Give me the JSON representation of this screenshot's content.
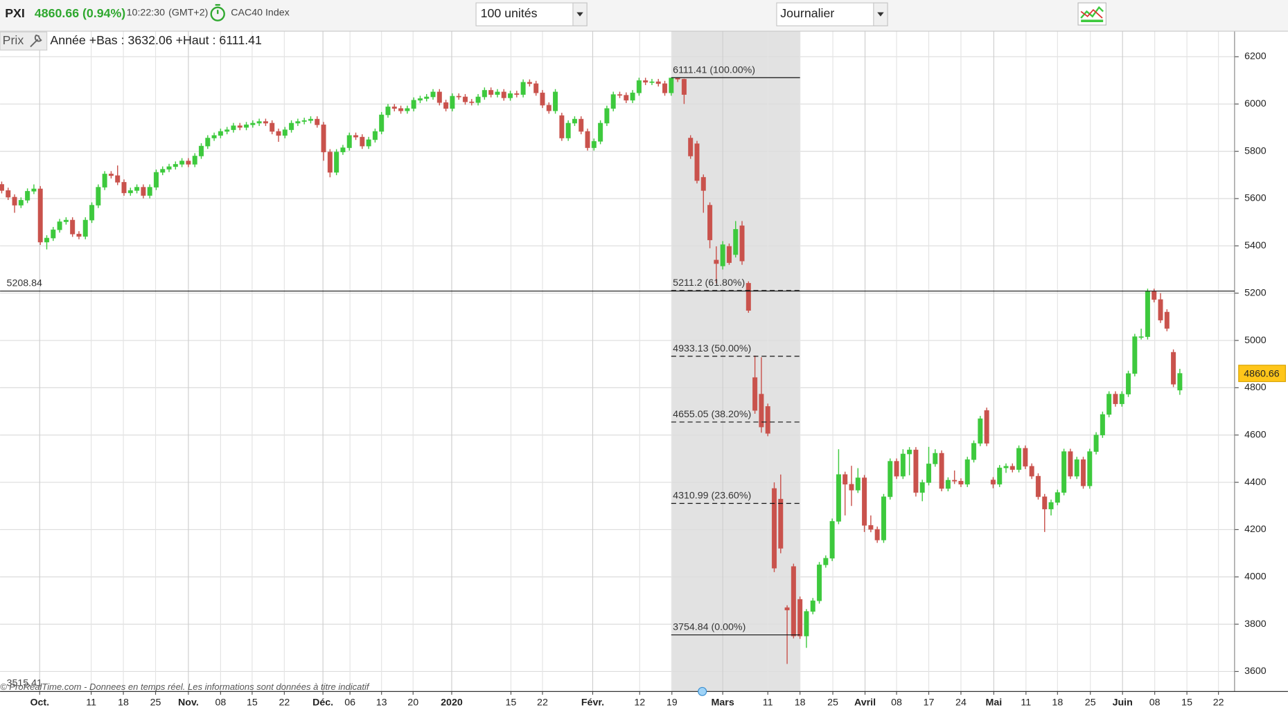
{
  "header": {
    "symbol": "PXI",
    "price_change": "4860.66 (0.94%)",
    "time": "10:22:30",
    "timezone": "(GMT+2)",
    "instrument": "CAC40 Index",
    "quantity": "100 unités",
    "period": "Journalier"
  },
  "footer": "© ProRealTime.com  - Donnees en temps réel. Les informations sont données à titre indicatif",
  "chart_data": {
    "type": "candlestick",
    "panel_label": "Prix",
    "subtitle": "Année +Bas : 3632.06 +Haut : 6111.41",
    "colors": {
      "up": "#3dc93d",
      "down": "#c9524c"
    },
    "x": [
      0,
      1,
      2,
      3,
      4,
      5,
      6,
      7,
      8,
      9,
      10,
      11,
      12,
      13,
      14,
      15,
      16,
      17,
      18,
      19,
      20,
      21,
      22,
      23,
      24,
      25,
      26,
      27,
      28,
      29,
      30,
      31,
      32,
      33,
      34,
      35,
      36,
      37,
      38,
      39,
      40,
      41,
      42,
      43,
      44,
      45,
      46,
      47,
      48,
      49,
      50,
      51,
      52,
      53,
      54,
      55,
      56,
      57,
      58,
      59,
      60,
      61,
      62,
      63,
      64,
      65,
      66,
      67,
      68,
      69,
      70,
      71,
      72,
      73,
      74,
      75,
      76,
      77,
      78,
      79,
      80,
      81,
      82,
      83,
      84,
      85,
      86,
      87,
      88,
      89,
      90,
      91,
      92,
      93,
      94,
      95,
      96,
      97,
      98,
      99,
      100,
      101,
      102,
      103,
      104,
      105,
      106,
      107,
      108,
      109,
      110,
      111,
      112,
      113,
      114,
      115,
      116,
      117,
      118,
      119,
      120,
      121,
      122,
      123,
      124,
      125,
      126,
      127,
      128,
      129,
      130,
      131,
      132,
      133,
      134,
      135,
      136,
      137,
      138,
      139,
      140,
      141,
      142,
      143,
      144,
      145,
      146,
      147,
      148,
      149,
      150,
      151,
      152,
      153,
      154,
      155,
      156,
      157,
      158,
      159,
      160,
      161,
      162,
      163,
      164,
      165,
      166,
      167,
      168,
      169,
      170,
      171,
      172,
      173,
      174,
      175,
      176,
      177,
      178,
      179,
      180,
      181,
      182,
      183
    ],
    "ohlc": [
      [
        5660,
        5672,
        5622,
        5634
      ],
      [
        5634,
        5646,
        5594,
        5606
      ],
      [
        5606,
        5618,
        5540,
        5572
      ],
      [
        5572,
        5605,
        5560,
        5593
      ],
      [
        5593,
        5643,
        5581,
        5631
      ],
      [
        5631,
        5660,
        5619,
        5641
      ],
      [
        5641,
        5653,
        5404,
        5416
      ],
      [
        5416,
        5445,
        5385,
        5433
      ],
      [
        5433,
        5480,
        5421,
        5468
      ],
      [
        5468,
        5514,
        5456,
        5502
      ],
      [
        5502,
        5521,
        5490,
        5509
      ],
      [
        5509,
        5521,
        5438,
        5450
      ],
      [
        5450,
        5462,
        5428,
        5440
      ],
      [
        5440,
        5521,
        5428,
        5509
      ],
      [
        5509,
        5584,
        5497,
        5572
      ],
      [
        5572,
        5660,
        5560,
        5648
      ],
      [
        5648,
        5716,
        5636,
        5704
      ],
      [
        5704,
        5716,
        5685,
        5697
      ],
      [
        5697,
        5740,
        5657,
        5669
      ],
      [
        5669,
        5681,
        5612,
        5624
      ],
      [
        5624,
        5646,
        5612,
        5634
      ],
      [
        5634,
        5660,
        5622,
        5648
      ],
      [
        5648,
        5660,
        5601,
        5613
      ],
      [
        5613,
        5660,
        5601,
        5648
      ],
      [
        5648,
        5723,
        5636,
        5711
      ],
      [
        5711,
        5736,
        5699,
        5724
      ],
      [
        5724,
        5747,
        5712,
        5735
      ],
      [
        5735,
        5757,
        5723,
        5745
      ],
      [
        5745,
        5771,
        5733,
        5759
      ],
      [
        5759,
        5771,
        5733,
        5745
      ],
      [
        5745,
        5792,
        5733,
        5780
      ],
      [
        5780,
        5834,
        5768,
        5822
      ],
      [
        5822,
        5868,
        5810,
        5856
      ],
      [
        5856,
        5879,
        5844,
        5867
      ],
      [
        5867,
        5896,
        5855,
        5884
      ],
      [
        5884,
        5903,
        5872,
        5891
      ],
      [
        5891,
        5920,
        5879,
        5908
      ],
      [
        5908,
        5920,
        5889,
        5901
      ],
      [
        5901,
        5924,
        5889,
        5912
      ],
      [
        5912,
        5931,
        5900,
        5919
      ],
      [
        5919,
        5938,
        5907,
        5926
      ],
      [
        5926,
        5938,
        5907,
        5919
      ],
      [
        5919,
        5931,
        5872,
        5884
      ],
      [
        5884,
        5896,
        5840,
        5867
      ],
      [
        5867,
        5903,
        5855,
        5891
      ],
      [
        5891,
        5931,
        5879,
        5919
      ],
      [
        5919,
        5938,
        5907,
        5926
      ],
      [
        5926,
        5942,
        5914,
        5930
      ],
      [
        5930,
        5948,
        5918,
        5936
      ],
      [
        5936,
        5948,
        5900,
        5912
      ],
      [
        5912,
        5924,
        5760,
        5797
      ],
      [
        5797,
        5809,
        5690,
        5711
      ],
      [
        5711,
        5809,
        5699,
        5797
      ],
      [
        5797,
        5827,
        5785,
        5815
      ],
      [
        5815,
        5879,
        5803,
        5867
      ],
      [
        5867,
        5879,
        5848,
        5860
      ],
      [
        5860,
        5872,
        5810,
        5822
      ],
      [
        5822,
        5861,
        5810,
        5849
      ],
      [
        5849,
        5896,
        5837,
        5884
      ],
      [
        5884,
        5966,
        5872,
        5954
      ],
      [
        5954,
        6000,
        5942,
        5988
      ],
      [
        5988,
        6000,
        5969,
        5981
      ],
      [
        5981,
        5993,
        5959,
        5971
      ],
      [
        5971,
        5993,
        5959,
        5981
      ],
      [
        5981,
        6028,
        5969,
        6016
      ],
      [
        6016,
        6035,
        6004,
        6023
      ],
      [
        6023,
        6042,
        6011,
        6030
      ],
      [
        6030,
        6063,
        6018,
        6051
      ],
      [
        6051,
        6063,
        5994,
        6006
      ],
      [
        6006,
        6018,
        5969,
        5981
      ],
      [
        5981,
        6045,
        5969,
        6033
      ],
      [
        6033,
        6045,
        6018,
        6030
      ],
      [
        6030,
        6042,
        5997,
        6009
      ],
      [
        6009,
        6021,
        5994,
        6006
      ],
      [
        6006,
        6042,
        5994,
        6030
      ],
      [
        6030,
        6070,
        6018,
        6058
      ],
      [
        6058,
        6070,
        6028,
        6040
      ],
      [
        6040,
        6063,
        6028,
        6051
      ],
      [
        6051,
        6063,
        6014,
        6026
      ],
      [
        6026,
        6056,
        6014,
        6044
      ],
      [
        6044,
        6056,
        6028,
        6040
      ],
      [
        6040,
        6104,
        6028,
        6092
      ],
      [
        6092,
        6104,
        6074,
        6086
      ],
      [
        6086,
        6098,
        6035,
        6047
      ],
      [
        6047,
        6059,
        5983,
        5995
      ],
      [
        5995,
        6007,
        5959,
        5971
      ],
      [
        5971,
        6063,
        5959,
        6051
      ],
      [
        5951,
        5963,
        5844,
        5856
      ],
      [
        5856,
        5931,
        5844,
        5919
      ],
      [
        5919,
        5948,
        5907,
        5936
      ],
      [
        5936,
        5948,
        5872,
        5884
      ],
      [
        5884,
        5896,
        5803,
        5815
      ],
      [
        5815,
        5854,
        5803,
        5842
      ],
      [
        5842,
        5931,
        5830,
        5919
      ],
      [
        5919,
        5993,
        5907,
        5981
      ],
      [
        5981,
        6052,
        5969,
        6040
      ],
      [
        6040,
        6052,
        6025,
        6037
      ],
      [
        6037,
        6049,
        6004,
        6016
      ],
      [
        6016,
        6059,
        6004,
        6047
      ],
      [
        6047,
        6111,
        6035,
        6099
      ],
      [
        6099,
        6111,
        6080,
        6092
      ],
      [
        6092,
        6106,
        6080,
        6094
      ],
      [
        6094,
        6106,
        6074,
        6086
      ],
      [
        6086,
        6098,
        6035,
        6047
      ],
      [
        6047,
        6111.41,
        6035,
        6110
      ],
      [
        6110,
        6111,
        6093,
        6105
      ],
      [
        6105,
        6107,
        6000,
        6040
      ],
      [
        5856,
        5868,
        5768,
        5780
      ],
      [
        5832,
        5844,
        5664,
        5676
      ],
      [
        5690,
        5702,
        5540,
        5634
      ],
      [
        5572,
        5584,
        5390,
        5425
      ],
      [
        5340,
        5398,
        5242,
        5325
      ],
      [
        5315,
        5420,
        5300,
        5405
      ],
      [
        5398,
        5410,
        5320,
        5329
      ],
      [
        5363,
        5505,
        5351,
        5470
      ],
      [
        5485,
        5505,
        5320,
        5336
      ],
      [
        5242,
        5250,
        5117,
        5127
      ],
      [
        4843,
        4936,
        4690,
        4704
      ],
      [
        4773,
        4929,
        4610,
        4634
      ],
      [
        4721,
        4733,
        4595,
        4607
      ],
      [
        4374,
        4400,
        4020,
        4037
      ],
      [
        4329,
        4433,
        4100,
        4121
      ],
      [
        3870,
        3880,
        3632.06,
        3860
      ],
      [
        4044,
        4056,
        3740,
        3750
      ],
      [
        3905,
        3917,
        3738,
        3750
      ],
      [
        3750,
        3864,
        3700,
        3854
      ],
      [
        3854,
        3911,
        3842,
        3899
      ],
      [
        3899,
        4063,
        3887,
        4051
      ],
      [
        4051,
        4091,
        4039,
        4079
      ],
      [
        4079,
        4247,
        4067,
        4235
      ],
      [
        4235,
        4540,
        4223,
        4433
      ],
      [
        4433,
        4445,
        4260,
        4392
      ],
      [
        4392,
        4470,
        4300,
        4367
      ],
      [
        4367,
        4460,
        4355,
        4419
      ],
      [
        4419,
        4431,
        4190,
        4218
      ],
      [
        4218,
        4260,
        4189,
        4201
      ],
      [
        4201,
        4213,
        4144,
        4156
      ],
      [
        4156,
        4351,
        4144,
        4339
      ],
      [
        4339,
        4501,
        4327,
        4489
      ],
      [
        4489,
        4501,
        4414,
        4426
      ],
      [
        4426,
        4540,
        4414,
        4520
      ],
      [
        4520,
        4549,
        4430,
        4537
      ],
      [
        4537,
        4549,
        4340,
        4357
      ],
      [
        4357,
        4411,
        4320,
        4399
      ],
      [
        4399,
        4550,
        4387,
        4478
      ],
      [
        4478,
        4540,
        4466,
        4523
      ],
      [
        4523,
        4535,
        4362,
        4374
      ],
      [
        4374,
        4421,
        4362,
        4409
      ],
      [
        4409,
        4450,
        4393,
        4405
      ],
      [
        4405,
        4417,
        4380,
        4392
      ],
      [
        4392,
        4508,
        4380,
        4496
      ],
      [
        4496,
        4577,
        4484,
        4565
      ],
      [
        4565,
        4681,
        4553,
        4669
      ],
      [
        4704,
        4716,
        4553,
        4565
      ],
      [
        4410,
        4422,
        4375,
        4392
      ],
      [
        4392,
        4473,
        4380,
        4461
      ],
      [
        4461,
        4480,
        4440,
        4468
      ],
      [
        4468,
        4480,
        4442,
        4454
      ],
      [
        4454,
        4556,
        4442,
        4544
      ],
      [
        4544,
        4556,
        4456,
        4468
      ],
      [
        4468,
        4480,
        4414,
        4426
      ],
      [
        4426,
        4438,
        4327,
        4339
      ],
      [
        4339,
        4351,
        4190,
        4287
      ],
      [
        4287,
        4327,
        4260,
        4315
      ],
      [
        4315,
        4369,
        4303,
        4357
      ],
      [
        4357,
        4542,
        4345,
        4530
      ],
      [
        4530,
        4542,
        4414,
        4426
      ],
      [
        4426,
        4508,
        4414,
        4496
      ],
      [
        4496,
        4508,
        4373,
        4385
      ],
      [
        4385,
        4542,
        4373,
        4530
      ],
      [
        4530,
        4612,
        4518,
        4600
      ],
      [
        4600,
        4699,
        4588,
        4687
      ],
      [
        4687,
        4785,
        4675,
        4773
      ],
      [
        4773,
        4785,
        4720,
        4732
      ],
      [
        4732,
        4785,
        4720,
        4773
      ],
      [
        4773,
        4872,
        4761,
        4860
      ],
      [
        4860,
        5028,
        4848,
        5016
      ],
      [
        5016,
        5050,
        5004,
        5016
      ],
      [
        5016,
        5219,
        5004,
        5207
      ],
      [
        5207,
        5219,
        5161,
        5173
      ],
      [
        5173,
        5200,
        5074,
        5086
      ],
      [
        5120,
        5132,
        5039,
        5051
      ],
      [
        4950,
        4962,
        4803,
        4815
      ],
      [
        4790,
        4880,
        4770,
        4860.66
      ]
    ],
    "xlim": [
      0,
      191.5
    ],
    "xticks": [
      {
        "value": 5.9,
        "label": "Oct."
      },
      {
        "value": 13.9,
        "label": "11"
      },
      {
        "value": 18.9,
        "label": "18"
      },
      {
        "value": 23.9,
        "label": "25"
      },
      {
        "value": 29.0,
        "label": "Nov."
      },
      {
        "value": 34.0,
        "label": "08"
      },
      {
        "value": 38.9,
        "label": "15"
      },
      {
        "value": 43.9,
        "label": "22"
      },
      {
        "value": 49.9,
        "label": "Déc."
      },
      {
        "value": 54.1,
        "label": "06"
      },
      {
        "value": 59.0,
        "label": "13"
      },
      {
        "value": 63.9,
        "label": "20"
      },
      {
        "value": 69.9,
        "label": "2020"
      },
      {
        "value": 79.1,
        "label": "15"
      },
      {
        "value": 84.0,
        "label": "22"
      },
      {
        "value": 91.8,
        "label": "Févr."
      },
      {
        "value": 99.1,
        "label": "12"
      },
      {
        "value": 104.1,
        "label": "19"
      },
      {
        "value": 112.0,
        "label": "Mars"
      },
      {
        "value": 119.0,
        "label": "11"
      },
      {
        "value": 124.0,
        "label": "18"
      },
      {
        "value": 129.1,
        "label": "25"
      },
      {
        "value": 134.1,
        "label": "Avril"
      },
      {
        "value": 139.0,
        "label": "08"
      },
      {
        "value": 144.0,
        "label": "17"
      },
      {
        "value": 149.0,
        "label": "24"
      },
      {
        "value": 154.1,
        "label": "Mai"
      },
      {
        "value": 159.1,
        "label": "11"
      },
      {
        "value": 164.0,
        "label": "18"
      },
      {
        "value": 169.1,
        "label": "25"
      },
      {
        "value": 174.1,
        "label": "Juin"
      },
      {
        "value": 179.1,
        "label": "08"
      },
      {
        "value": 184.1,
        "label": "15"
      },
      {
        "value": 189.0,
        "label": "22"
      }
    ],
    "ylim": [
      3515.41,
      6308
    ],
    "yticks": [
      3600,
      3800,
      4000,
      4200,
      4400,
      4600,
      4800,
      5000,
      5200,
      5400,
      5600,
      5800,
      6000,
      6200
    ],
    "grid": true,
    "last_price": 4860.66,
    "reference_line": 5208.84,
    "fibonacci": {
      "x": [
        104,
        124
      ],
      "levels": [
        {
          "value": 6111.41,
          "label": "6111.41 (100.00%)"
        },
        {
          "value": 5211.2,
          "label": "5211.2 (61.80%)"
        },
        {
          "value": 4933.13,
          "label": "4933.13 (50.00%)"
        },
        {
          "value": 4655.05,
          "label": "4655.05 (38.20%)"
        },
        {
          "value": 4310.99,
          "label": "4310.99 (23.60%)"
        },
        {
          "value": 3754.84,
          "label": "3754.84 (0.00%)"
        }
      ]
    }
  }
}
